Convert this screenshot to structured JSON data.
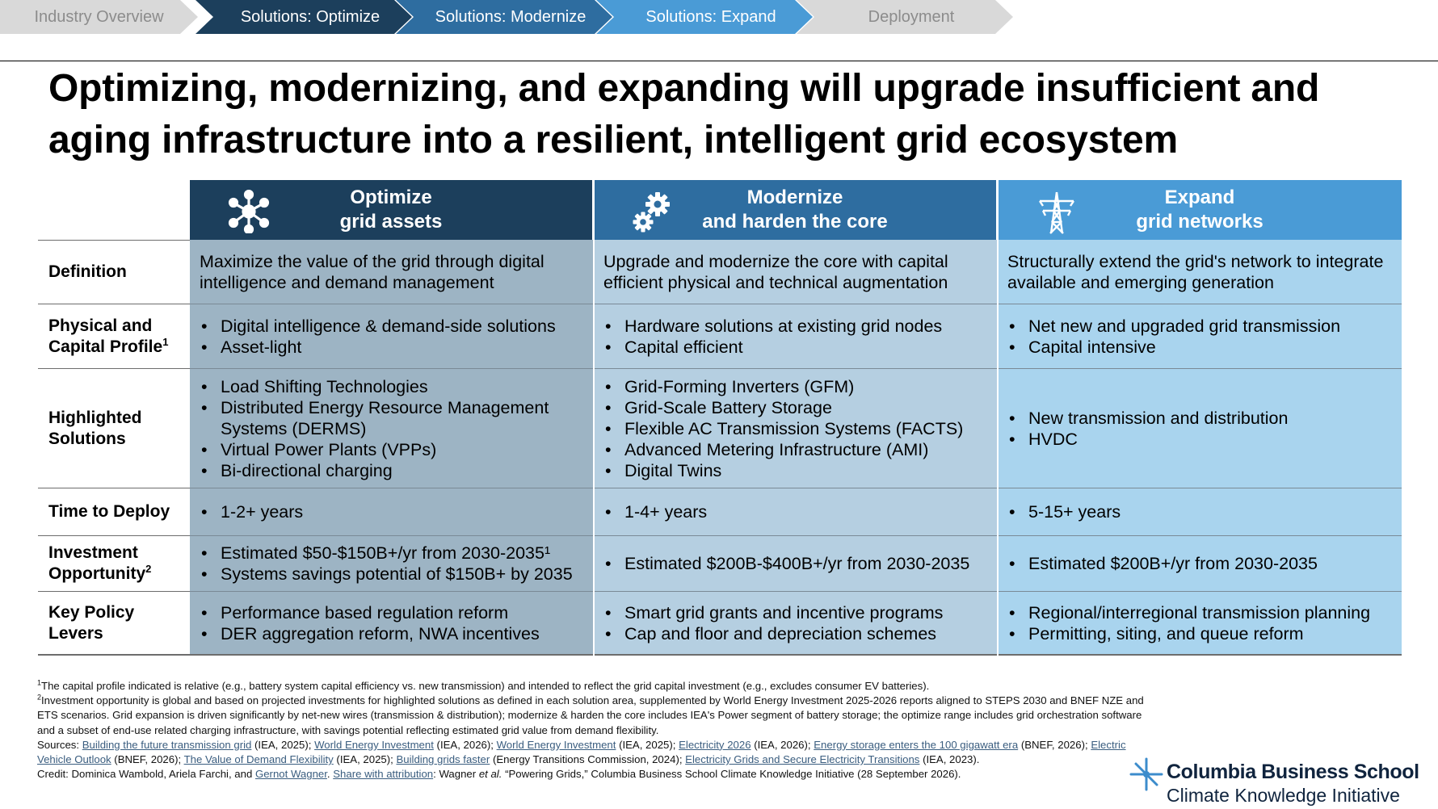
{
  "nav": {
    "steps": [
      {
        "label": "Industry Overview",
        "state": "inactive"
      },
      {
        "label": "Solutions: Optimize",
        "state": "active"
      },
      {
        "label": "Solutions: Modernize",
        "state": "active"
      },
      {
        "label": "Solutions: Expand",
        "state": "active"
      },
      {
        "label": "Deployment",
        "state": "inactive"
      }
    ]
  },
  "title": "Optimizing, modernizing, and expanding will upgrade insufficient and aging infrastructure into a resilient, intelligent grid ecosystem",
  "columns": [
    {
      "line1": "Optimize",
      "line2": "grid assets",
      "icon": "network-hub-icon",
      "color": "#1c3f5c"
    },
    {
      "line1": "Modernize",
      "line2": "and harden the core",
      "icon": "gears-icon",
      "color": "#2e6da0"
    },
    {
      "line1": "Expand",
      "line2": "grid networks",
      "icon": "transmission-tower-icon",
      "color": "#4a9bd6"
    }
  ],
  "rows": [
    {
      "label": "Definition",
      "label_sup": "",
      "cells": [
        {
          "type": "text",
          "text": "Maximize the value of the grid through digital intelligence and demand management"
        },
        {
          "type": "text",
          "text": "Upgrade and modernize the core with capital efficient physical and technical augmentation"
        },
        {
          "type": "text",
          "text": "Structurally extend the grid's network to integrate available and emerging generation"
        }
      ]
    },
    {
      "label": "Physical and Capital Profile",
      "label_sup": "1",
      "cells": [
        {
          "type": "list",
          "items": [
            "Digital intelligence & demand-side solutions",
            "Asset-light"
          ]
        },
        {
          "type": "list",
          "items": [
            "Hardware solutions at existing grid nodes",
            "Capital efficient"
          ]
        },
        {
          "type": "list",
          "items": [
            "Net new and upgraded grid transmission",
            "Capital intensive"
          ]
        }
      ]
    },
    {
      "label": "Highlighted Solutions",
      "label_sup": "",
      "cells": [
        {
          "type": "list",
          "items": [
            "Load Shifting Technologies",
            "Distributed Energy Resource Management Systems (DERMS)",
            "Virtual Power Plants (VPPs)",
            "Bi-directional charging"
          ]
        },
        {
          "type": "list",
          "items": [
            "Grid-Forming Inverters (GFM)",
            "Grid-Scale Battery Storage",
            "Flexible AC Transmission Systems (FACTS)",
            "Advanced Metering Infrastructure (AMI)",
            "Digital Twins"
          ]
        },
        {
          "type": "list",
          "items": [
            "New transmission and distribution",
            "HVDC"
          ]
        }
      ]
    },
    {
      "label": "Time to Deploy",
      "label_sup": "",
      "cells": [
        {
          "type": "list",
          "items": [
            "1-2+ years"
          ]
        },
        {
          "type": "list",
          "items": [
            "1-4+ years"
          ]
        },
        {
          "type": "list",
          "items": [
            "5-15+ years"
          ]
        }
      ]
    },
    {
      "label": "Investment Opportunity",
      "label_sup": "2",
      "cells": [
        {
          "type": "list",
          "items": [
            "Estimated $50-$150B+/yr from 2030-2035¹",
            "Systems savings potential of $150B+ by 2035"
          ]
        },
        {
          "type": "list",
          "items": [
            "Estimated $200B-$400B+/yr from 2030-2035"
          ]
        },
        {
          "type": "list",
          "items": [
            "Estimated $200B+/yr from 2030-2035"
          ]
        }
      ]
    },
    {
      "label": "Key Policy Levers",
      "label_sup": "",
      "cells": [
        {
          "type": "list",
          "items": [
            "Performance based regulation reform",
            "DER aggregation reform, NWA incentives"
          ]
        },
        {
          "type": "list",
          "items": [
            "Smart grid grants and incentive programs",
            "Cap and floor and depreciation schemes"
          ]
        },
        {
          "type": "list",
          "items": [
            "Regional/interregional transmission planning",
            "Permitting, siting, and queue reform"
          ]
        }
      ]
    }
  ],
  "footnotes": {
    "note1_mark": "1",
    "note1": "The capital profile indicated is relative (e.g., battery system capital efficiency vs. new transmission) and intended to reflect the grid capital investment (e.g., excludes consumer EV batteries).",
    "note2_mark": "2",
    "note2": "Investment opportunity is global and based on projected investments for highlighted solutions as defined in each solution area, supplemented by World Energy Investment 2025-2026 reports aligned to STEPS 2030 and BNEF NZE and ETS scenarios. Grid expansion is driven significantly by net-new wires (transmission & distribution); modernize & harden the core includes IEA's Power segment of battery storage; the optimize range includes grid orchestration software and a subset of end-use related charging infrastructure, with savings potential reflecting estimated grid value from demand flexibility.",
    "sources_label": "Sources:",
    "sources": [
      {
        "link": "Building the future transmission grid",
        "after": " (IEA, 2025); "
      },
      {
        "link": "World Energy Investment",
        "after": " (IEA, 2026); "
      },
      {
        "link": "World Energy Investment",
        "after": " (IEA, 2025); "
      },
      {
        "link": "Electricity 2026",
        "after": " (IEA, 2026); "
      },
      {
        "link": "Energy storage enters the 100 gigawatt era",
        "after": " (BNEF, 2026); "
      },
      {
        "link": "Electric Vehicle Outlook",
        "after": " (BNEF, 2026); "
      },
      {
        "link": "The Value of Demand Flexibility",
        "after": " (IEA, 2025); "
      },
      {
        "link": "Building grids faster",
        "after": " (Energy Transitions Commission, 2024); "
      },
      {
        "link": "Electricity Grids and Secure Electricity Transitions",
        "after": " (IEA, 2023)."
      }
    ],
    "credit_prefix": "Credit: Dominica Wambold, Ariela Farchi, and ",
    "credit_link": "Gernot Wagner",
    "credit_mid": ". ",
    "share_link": "Share with attribution",
    "share_after": ": Wagner ",
    "et_al": "et al.",
    "share_rest": " “Powering Grids,” Columbia Business School Climate Knowledge Initiative (28 September 2026)."
  },
  "brand": {
    "name": "Columbia Business School",
    "sub": "Climate Knowledge Initiative",
    "crown_icon": "columbia-crown-icon",
    "color": "#10243e"
  },
  "colors": {
    "nav_inactive_bg": "#d9d9d9",
    "nav_inactive_text": "#8c8c8c",
    "col_a_bg": "#9db4c4",
    "col_b_bg": "#b5cfe1",
    "col_c_bg": "#a9d4ee"
  }
}
